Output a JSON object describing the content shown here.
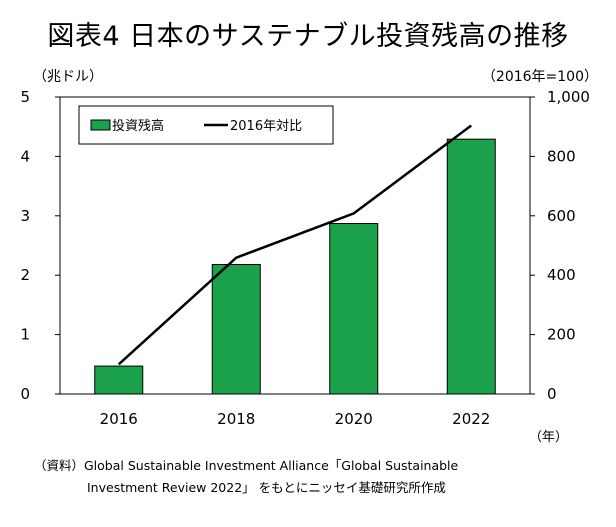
{
  "title": "図表4 日本のサステナブル投資残高の推移",
  "left_unit": "（兆ドル）",
  "right_unit": "（2016年=100）",
  "x_unit": "（年）",
  "source_line1": "（資料）Global Sustainable Investment Alliance「Global Sustainable",
  "source_line2": "Investment Review 2022」 をもとにニッセイ基礎研究所作成",
  "chart_data": {
    "type": "bar",
    "categories": [
      "2016",
      "2018",
      "2020",
      "2022"
    ],
    "series": [
      {
        "name": "投資残高",
        "type": "bar",
        "axis": "left",
        "color": "#1ba14a",
        "values": [
          0.47,
          2.18,
          2.87,
          4.29
        ]
      },
      {
        "name": "2016年対比",
        "type": "line",
        "axis": "right",
        "color": "#000000",
        "values": [
          100,
          459,
          608,
          904
        ]
      }
    ],
    "y_left": {
      "min": 0,
      "max": 5,
      "ticks": [
        "0",
        "1",
        "2",
        "3",
        "4",
        "5"
      ]
    },
    "y_right": {
      "min": 0,
      "max": 1000,
      "ticks": [
        "0",
        "200",
        "400",
        "600",
        "800",
        "1,000"
      ]
    },
    "grid": false,
    "legend_position": "top-left"
  }
}
